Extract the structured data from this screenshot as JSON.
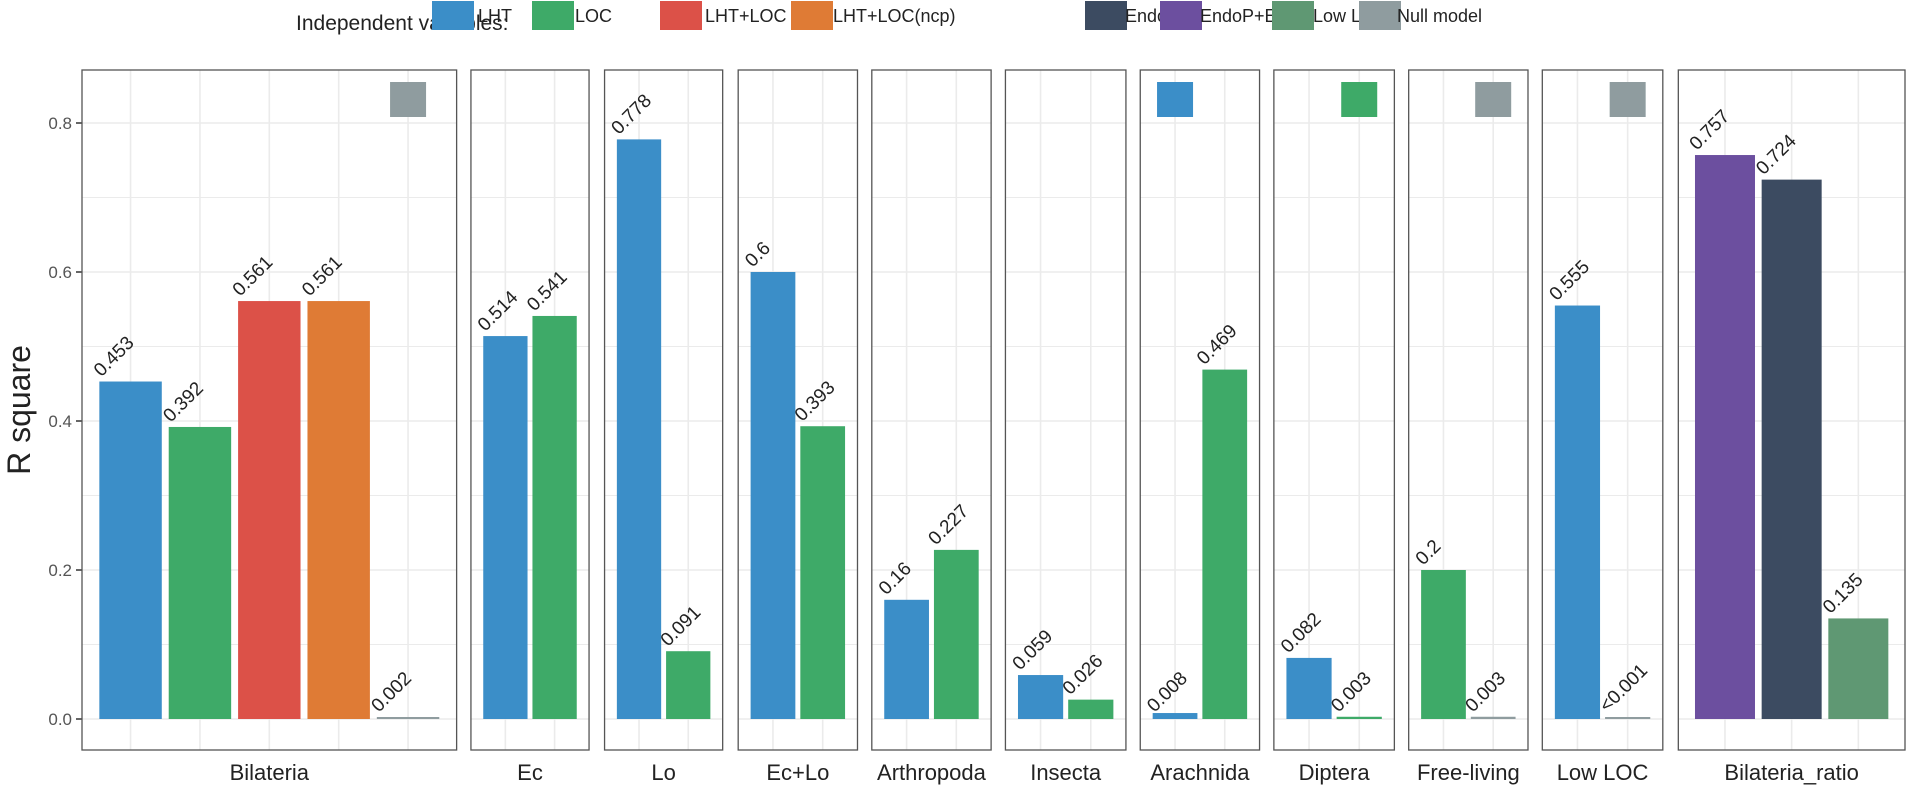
{
  "chart_data": {
    "type": "bar",
    "title": "",
    "xlabel": "",
    "ylabel": "R square",
    "ylim": [
      0,
      0.85
    ],
    "yticks": [
      0.0,
      0.2,
      0.4,
      0.6,
      0.8
    ],
    "ytick_labels": [
      "0.0",
      "0.2",
      "0.4",
      "0.6",
      "0.8"
    ],
    "grid": true,
    "legend": {
      "title": "Independent variables:",
      "placement": "top",
      "entries": [
        {
          "name": "LHT",
          "color": "#3b8ec8"
        },
        {
          "name": "LOC",
          "color": "#3eaa68"
        },
        {
          "name": "LHT+LOC",
          "color": "#dc5148"
        },
        {
          "name": "LHT+LOC(ncp)",
          "color": "#df7b35"
        },
        {
          "name": "EndoP",
          "color": "#3c4b61"
        },
        {
          "name": "EndoP+EctoP",
          "color": "#6c4f9f"
        },
        {
          "name": "Low LOC",
          "color": "#5f9873"
        },
        {
          "name": "Null model",
          "color": "#8f9c9f"
        }
      ]
    },
    "panels": [
      {
        "name": "Bilateria",
        "slots": 5,
        "bars": [
          {
            "series": "LHT",
            "value": 0.453,
            "label": "0.453"
          },
          {
            "series": "LOC",
            "value": 0.392,
            "label": "0.392"
          },
          {
            "series": "LHT+LOC",
            "value": 0.561,
            "label": "0.561"
          },
          {
            "series": "LHT+LOC(ncp)",
            "value": 0.561,
            "label": "0.561"
          },
          {
            "series": "Null model",
            "value": 0.002,
            "label": "0.002"
          }
        ],
        "marker": {
          "series": "Null model",
          "slot": 5
        }
      },
      {
        "name": "Ec",
        "slots": 2,
        "bars": [
          {
            "series": "LHT",
            "value": 0.514,
            "label": "0.514"
          },
          {
            "series": "LOC",
            "value": 0.541,
            "label": "0.541"
          }
        ]
      },
      {
        "name": "Lo",
        "slots": 2,
        "bars": [
          {
            "series": "LHT",
            "value": 0.778,
            "label": "0.778"
          },
          {
            "series": "LOC",
            "value": 0.091,
            "label": "0.091"
          }
        ]
      },
      {
        "name": "Ec+Lo",
        "slots": 2,
        "bars": [
          {
            "series": "LHT",
            "value": 0.6,
            "label": "0.6"
          },
          {
            "series": "LOC",
            "value": 0.393,
            "label": "0.393"
          }
        ]
      },
      {
        "name": "Arthropoda",
        "slots": 2,
        "bars": [
          {
            "series": "LHT",
            "value": 0.16,
            "label": "0.16"
          },
          {
            "series": "LOC",
            "value": 0.227,
            "label": "0.227"
          }
        ]
      },
      {
        "name": "Insecta",
        "slots": 2,
        "bars": [
          {
            "series": "LHT",
            "value": 0.059,
            "label": "0.059"
          },
          {
            "series": "LOC",
            "value": 0.026,
            "label": "0.026"
          }
        ]
      },
      {
        "name": "Arachnida",
        "slots": 2,
        "bars": [
          {
            "series": "LHT",
            "value": 0.008,
            "label": "0.008"
          },
          {
            "series": "LOC",
            "value": 0.469,
            "label": "0.469"
          }
        ],
        "marker": {
          "series": "LHT",
          "slot": 1
        }
      },
      {
        "name": "Diptera",
        "slots": 2,
        "bars": [
          {
            "series": "LHT",
            "value": 0.082,
            "label": "0.082"
          },
          {
            "series": "LOC",
            "value": 0.003,
            "label": "0.003"
          }
        ],
        "marker": {
          "series": "LOC",
          "slot": 2
        }
      },
      {
        "name": "Free-living",
        "slots": 2,
        "bars": [
          {
            "series": "LOC",
            "value": 0.2,
            "label": "0.2"
          },
          {
            "series": "Null model",
            "value": 0.003,
            "label": "0.003"
          }
        ],
        "marker": {
          "series": "Null model",
          "slot": 2
        }
      },
      {
        "name": "Low LOC",
        "slots": 2,
        "bars": [
          {
            "series": "LHT",
            "value": 0.555,
            "label": "0.555"
          },
          {
            "series": "Null model",
            "value": 0.0,
            "label": "<0.001"
          }
        ],
        "marker": {
          "series": "Null model",
          "slot": 2
        }
      },
      {
        "name": "Bilateria_ratio",
        "slots": 3,
        "bars": [
          {
            "series": "EndoP+EctoP",
            "value": 0.757,
            "label": "0.757"
          },
          {
            "series": "EndoP",
            "value": 0.724,
            "label": "0.724"
          },
          {
            "series": "Low LOC",
            "value": 0.135,
            "label": "0.135"
          }
        ]
      }
    ]
  }
}
